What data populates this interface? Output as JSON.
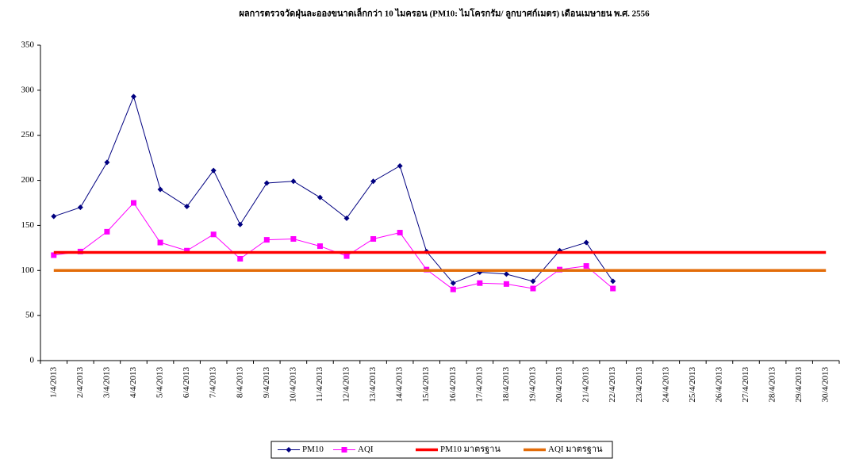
{
  "chart_data": {
    "type": "line",
    "title": "ผลการตรวจวัดฝุ่นละอองขนาดเล็กกว่า 10 ไมครอน (PM10: ไมโครกรัม/ ลูกบาศก์เมตร) เดือนเมษายน พ.ศ. 2556",
    "categories": [
      "1/4/2013",
      "2/4/2013",
      "3/4/2013",
      "4/4/2013",
      "5/4/2013",
      "6/4/2013",
      "7/4/2013",
      "8/4/2013",
      "9/4/2013",
      "10/4/2013",
      "11/4/2013",
      "12/4/2013",
      "13/4/2013",
      "14/4/2013",
      "15/4/2013",
      "16/4/2013",
      "17/4/2013",
      "18/4/2013",
      "19/4/2013",
      "20/4/2013",
      "21/4/2013",
      "22/4/2013",
      "23/4/2013",
      "24/4/2013",
      "25/4/2013",
      "26/4/2013",
      "27/4/2013",
      "28/4/2013",
      "29/4/2013",
      "30/4/2013"
    ],
    "series": [
      {
        "name": "PM10",
        "color": "#000080",
        "marker": "diamond",
        "values": [
          160,
          170,
          220,
          293,
          190,
          171,
          211,
          151,
          197,
          199,
          181,
          158,
          199,
          216,
          121,
          86,
          98,
          96,
          88,
          122,
          131,
          88,
          null,
          null,
          null,
          null,
          null,
          null,
          null,
          null
        ]
      },
      {
        "name": "AQI",
        "color": "#ff00ff",
        "marker": "square",
        "values": [
          117,
          121,
          143,
          175,
          131,
          122,
          140,
          113,
          134,
          135,
          127,
          116,
          135,
          142,
          101,
          79,
          86,
          85,
          80,
          101,
          105,
          80,
          null,
          null,
          null,
          null,
          null,
          null,
          null,
          null
        ]
      },
      {
        "name": "PM10 มาตรฐาน",
        "color": "#ff0000",
        "values": [
          120,
          120,
          120,
          120,
          120,
          120,
          120,
          120,
          120,
          120,
          120,
          120,
          120,
          120,
          120,
          120,
          120,
          120,
          120,
          120,
          120,
          120,
          120,
          120,
          120,
          120,
          120,
          120,
          120,
          120
        ]
      },
      {
        "name": "AQI มาตรฐาน",
        "color": "#e36c09",
        "values": [
          100,
          100,
          100,
          100,
          100,
          100,
          100,
          100,
          100,
          100,
          100,
          100,
          100,
          100,
          100,
          100,
          100,
          100,
          100,
          100,
          100,
          100,
          100,
          100,
          100,
          100,
          100,
          100,
          100,
          100
        ]
      }
    ],
    "ylim": [
      0,
      350
    ],
    "yticks": [
      0,
      50,
      100,
      150,
      200,
      250,
      300,
      350
    ],
    "legend": "bottom"
  }
}
